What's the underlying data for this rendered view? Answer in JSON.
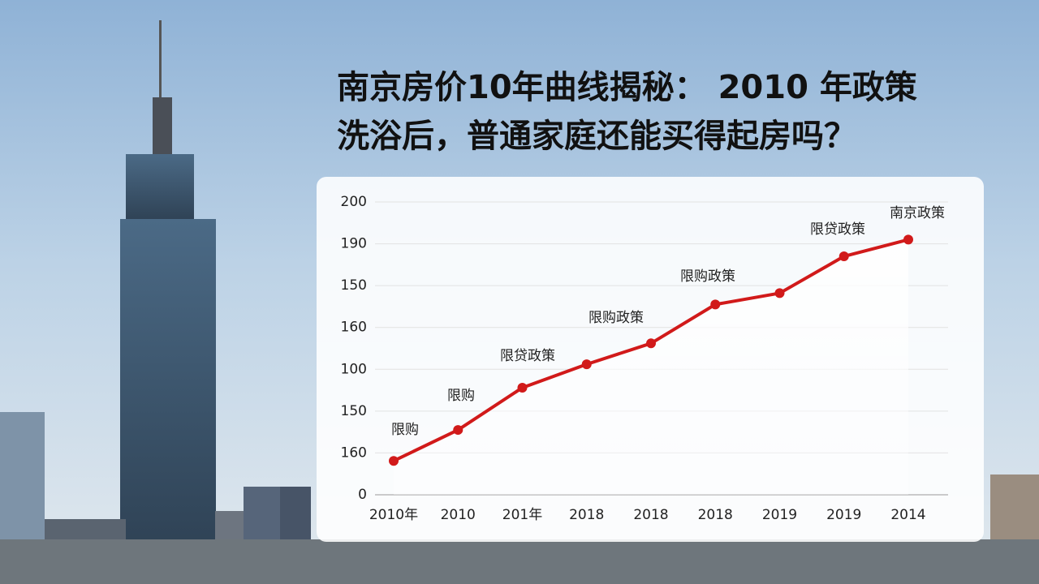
{
  "chart_data": {
    "type": "line",
    "title": [
      "南京房价10年曲线揭秘： 2010 年政策",
      "洗浴后，普通家庭还能买得起房吗？"
    ],
    "categories": [
      "2010年",
      "2010",
      "201年",
      "2018",
      "2018",
      "2018",
      "2019",
      "2019",
      "2014"
    ],
    "series": [
      {
        "name": "南京房价",
        "color": "#d11a1a",
        "values": [
          0.81,
          1.55,
          2.56,
          3.12,
          3.62,
          4.55,
          4.82,
          5.7,
          6.1
        ]
      }
    ],
    "ylim": [
      0,
      7
    ],
    "yticks": [
      0,
      {
        "value": 1,
        "label": "160"
      },
      {
        "value": 2,
        "label": "150"
      },
      {
        "value": 3,
        "label": "100"
      },
      {
        "value": 4,
        "label": "160"
      },
      {
        "value": 5,
        "label": "150"
      },
      {
        "value": 6,
        "label": "190"
      },
      {
        "value": 7,
        "label": "200"
      }
    ],
    "annotations": [
      "限购",
      "限购",
      "限贷政策",
      "限购政策",
      "限购政策",
      "限贷政策",
      "南京政策"
    ],
    "grid": true
  }
}
